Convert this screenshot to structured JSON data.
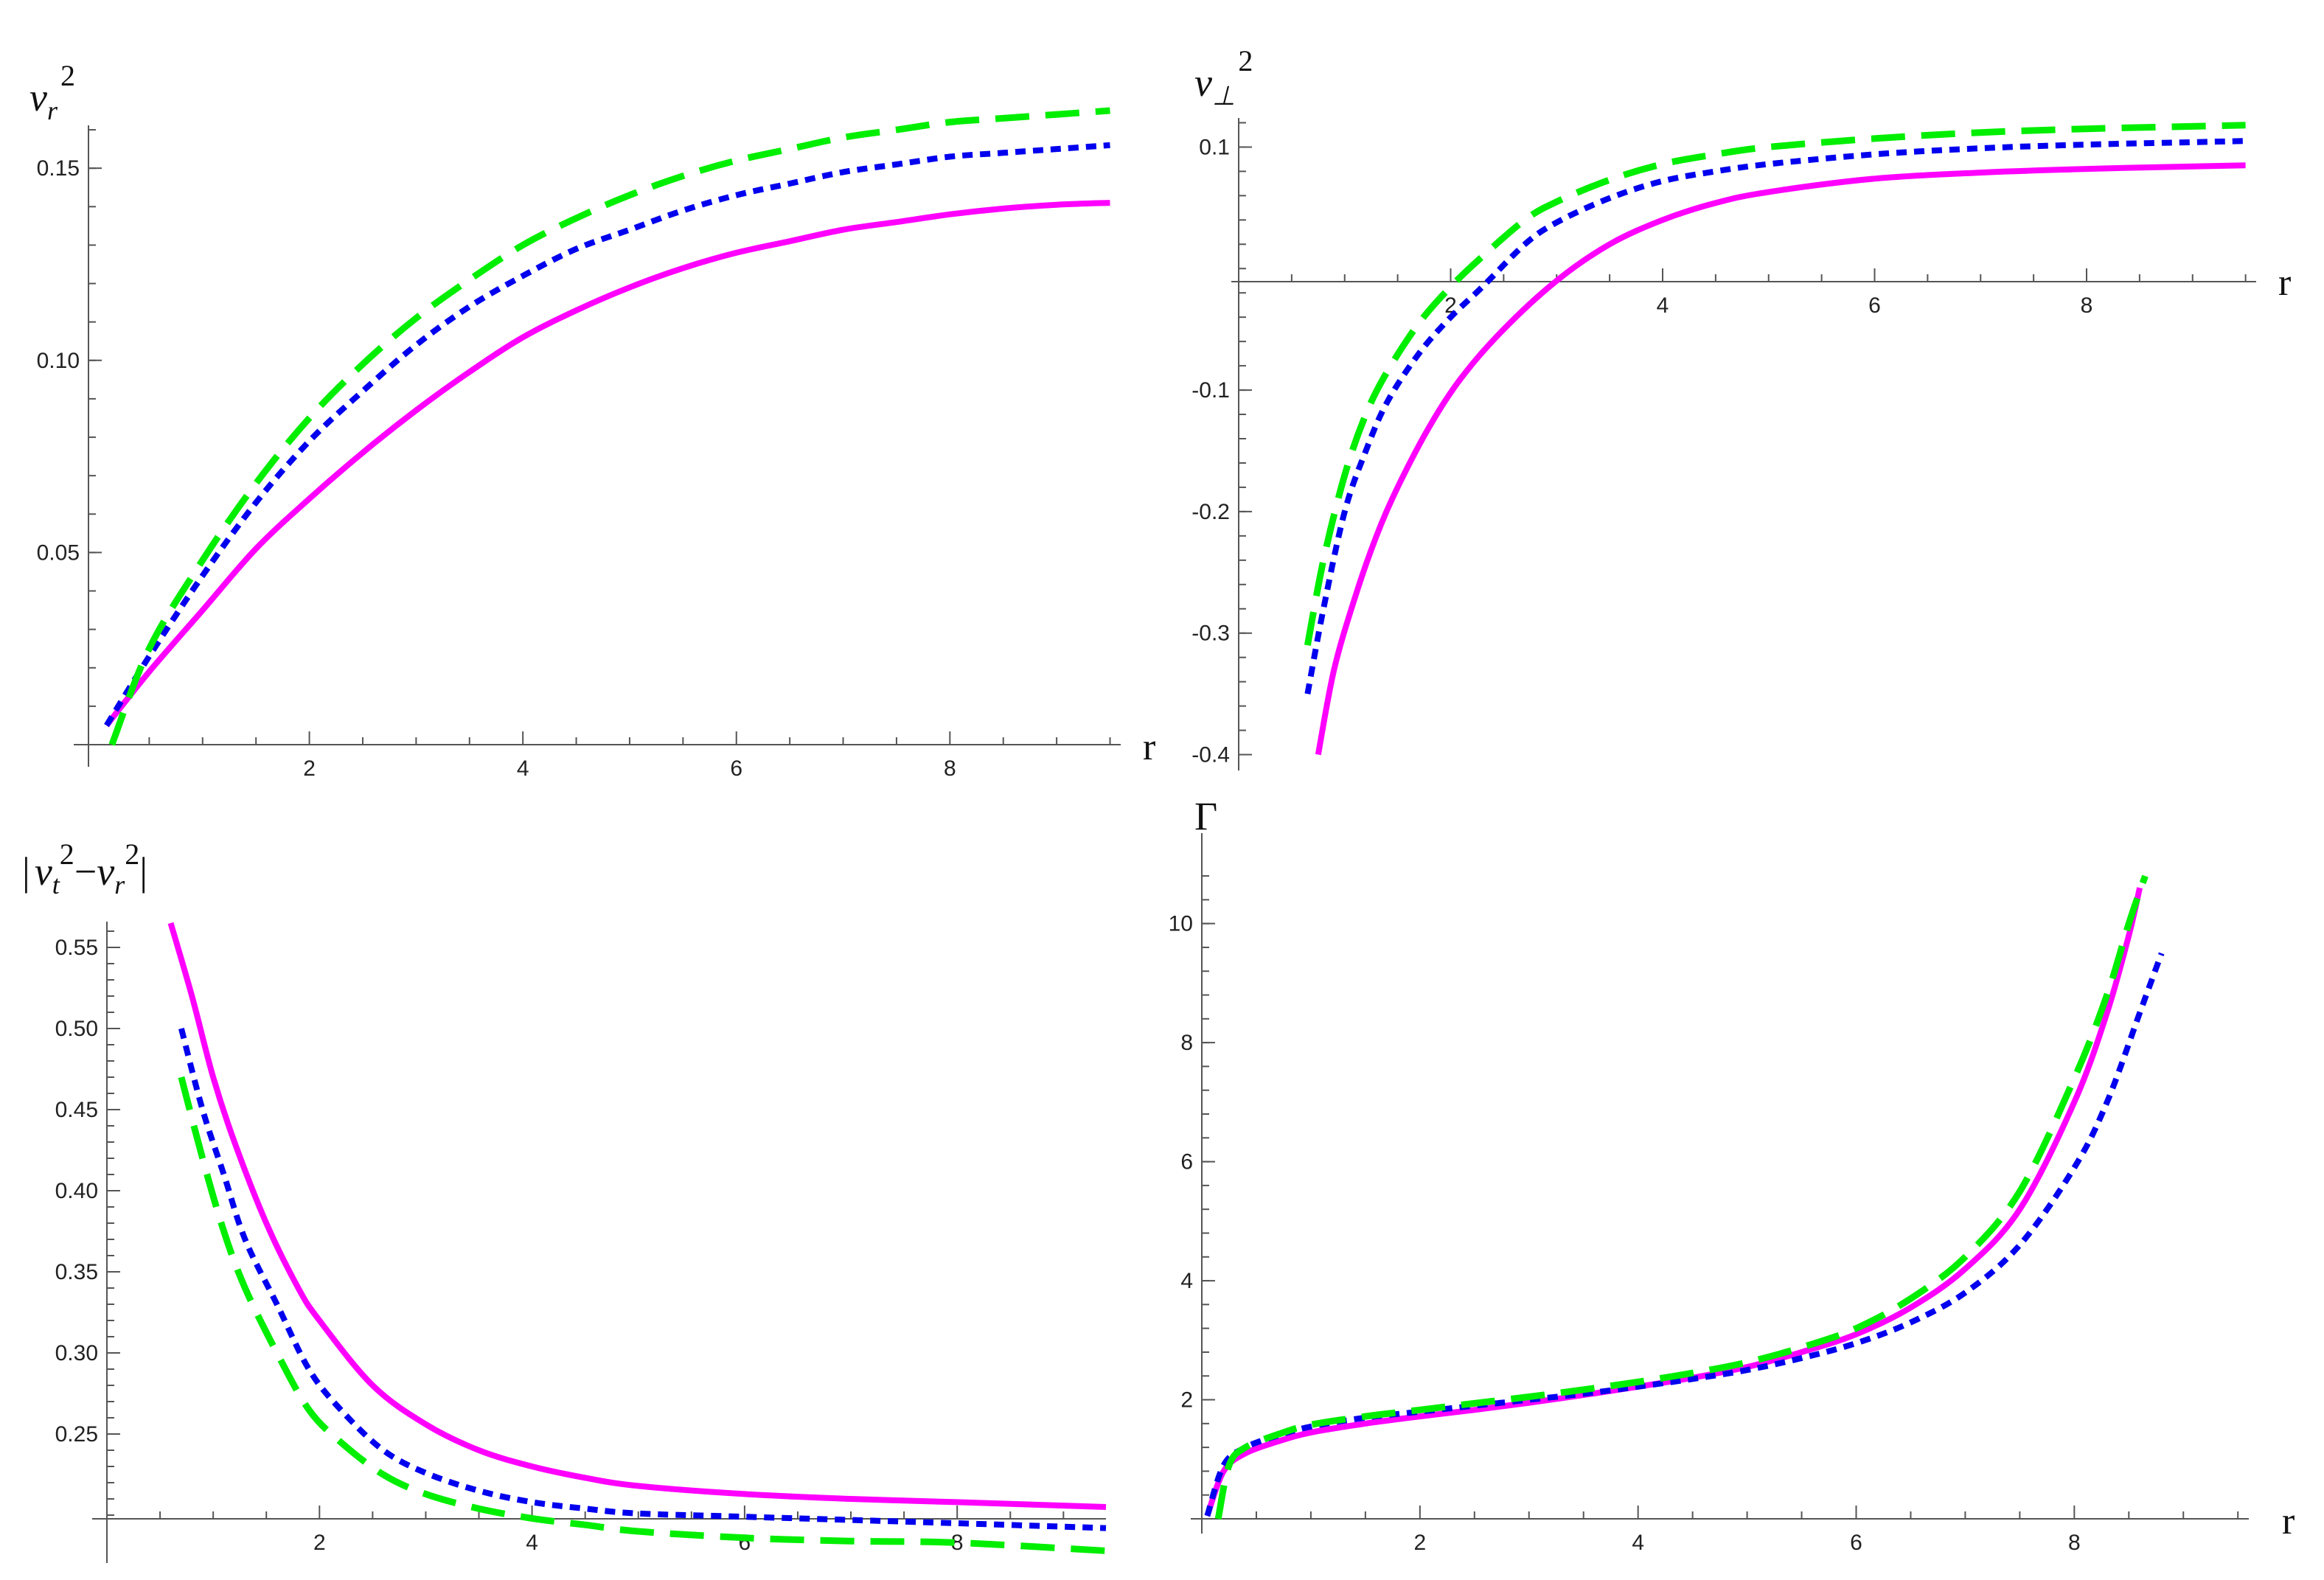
{
  "colors": {
    "magenta": "#ff00ff",
    "blue": "#0000ee",
    "green": "#00ee00",
    "axis": "#555555"
  },
  "chart_data": [
    {
      "id": "vr2",
      "type": "line",
      "ylabel": {
        "base": "v",
        "sub": "r",
        "sup": "2"
      },
      "xlabel": "r",
      "xlim": [
        0,
        9.6
      ],
      "ylim": [
        0,
        0.165
      ],
      "x_ticks": [
        "2",
        "4",
        "6",
        "8"
      ],
      "y_ticks": [
        "0.05",
        "0.10",
        "0.15"
      ],
      "series": [
        {
          "style": "solid",
          "color": "#ff00ff",
          "x": [
            0.1,
            0.5,
            1,
            1.5,
            2,
            2.5,
            3,
            3.5,
            4,
            4.5,
            5,
            5.5,
            6,
            6.5,
            7,
            7.5,
            8,
            8.5,
            9,
            9.5
          ],
          "y": [
            0.005,
            0.019,
            0.035,
            0.051,
            0.064,
            0.076,
            0.087,
            0.097,
            0.106,
            0.113,
            0.119,
            0.124,
            0.128,
            0.131,
            0.134,
            0.136,
            0.138,
            0.1395,
            0.1405,
            0.141
          ]
        },
        {
          "style": "dotted",
          "color": "#0000ee",
          "x": [
            0.1,
            0.5,
            1,
            1.5,
            2,
            2.5,
            3,
            3.5,
            4,
            4.5,
            5,
            5.5,
            6,
            6.5,
            7,
            7.5,
            8,
            8.5,
            9,
            9.5
          ],
          "y": [
            0.005,
            0.023,
            0.044,
            0.063,
            0.079,
            0.092,
            0.104,
            0.114,
            0.122,
            0.129,
            0.134,
            0.139,
            0.143,
            0.146,
            0.149,
            0.151,
            0.153,
            0.154,
            0.155,
            0.156
          ]
        },
        {
          "style": "dashed",
          "color": "#00ee00",
          "x": [
            0.15,
            0.5,
            1,
            1.5,
            2,
            2.5,
            3,
            3.5,
            4,
            4.5,
            5,
            5.5,
            6,
            6.5,
            7,
            7.5,
            8,
            8.5,
            9,
            9.5
          ],
          "y": [
            0.0,
            0.025,
            0.048,
            0.068,
            0.085,
            0.099,
            0.111,
            0.121,
            0.13,
            0.137,
            0.143,
            0.148,
            0.152,
            0.155,
            0.158,
            0.16,
            0.162,
            0.163,
            0.164,
            0.165
          ]
        }
      ]
    },
    {
      "id": "vperp2",
      "type": "line",
      "ylabel": {
        "base": "v",
        "sub": "⊥",
        "sup": "2"
      },
      "xlabel": "r",
      "xlim": [
        0,
        9.6
      ],
      "ylim": [
        -0.41,
        0.13
      ],
      "x_ticks": [
        "2",
        "4",
        "6",
        "8"
      ],
      "y_ticks": [
        "-0.4",
        "-0.3",
        "-0.2",
        "-0.1",
        "0.1"
      ],
      "series": [
        {
          "style": "solid",
          "color": "#ff00ff",
          "x": [
            0.75,
            0.9,
            1.1,
            1.3,
            1.5,
            1.8,
            2.1,
            2.5,
            3,
            3.5,
            4,
            4.5,
            5,
            6,
            7,
            8,
            9,
            9.5
          ],
          "y": [
            -0.4,
            -0.33,
            -0.27,
            -0.22,
            -0.18,
            -0.13,
            -0.09,
            -0.05,
            -0.01,
            0.02,
            0.04,
            0.054,
            0.063,
            0.074,
            0.079,
            0.082,
            0.084,
            0.085
          ]
        },
        {
          "style": "dotted",
          "color": "#0000ee",
          "x": [
            0.65,
            0.8,
            1,
            1.2,
            1.4,
            1.7,
            2,
            2.3,
            2.7,
            3,
            3.5,
            4,
            4.5,
            5,
            6,
            7,
            8,
            9,
            9.5
          ],
          "y": [
            -0.35,
            -0.28,
            -0.2,
            -0.15,
            -0.11,
            -0.07,
            -0.04,
            -0.015,
            0.02,
            0.038,
            0.058,
            0.072,
            0.08,
            0.086,
            0.094,
            0.099,
            0.102,
            0.104,
            0.105
          ]
        },
        {
          "style": "dashed",
          "color": "#00ee00",
          "x": [
            0.65,
            0.8,
            1,
            1.2,
            1.4,
            1.7,
            2,
            2.3,
            2.7,
            3,
            3.5,
            4,
            4.5,
            5,
            6,
            7,
            8,
            9,
            9.5
          ],
          "y": [
            -0.31,
            -0.24,
            -0.17,
            -0.12,
            -0.085,
            -0.045,
            -0.015,
            0.01,
            0.04,
            0.055,
            0.073,
            0.086,
            0.094,
            0.1,
            0.107,
            0.112,
            0.115,
            0.117,
            0.118
          ]
        }
      ]
    },
    {
      "id": "diff",
      "type": "line",
      "ylabel": {
        "text": "|v_t²−v_r²|"
      },
      "ylabel_parts": {
        "bar_left": "|",
        "v1": "v",
        "sub1": "t",
        "sup1": "2",
        "minus": "−",
        "v2": "v",
        "sub2": "r",
        "sup2": "2",
        "bar_right": "|"
      },
      "xlabel": "",
      "xlim": [
        0,
        9.4
      ],
      "ylim": [
        0.2,
        0.575
      ],
      "x_ticks": [
        "2",
        "4",
        "6",
        "8"
      ],
      "y_ticks": [
        "0.25",
        "0.30",
        "0.35",
        "0.40",
        "0.45",
        "0.50",
        "0.55"
      ],
      "series": [
        {
          "style": "solid",
          "color": "#ff00ff",
          "x": [
            0.6,
            0.8,
            1,
            1.2,
            1.5,
            1.8,
            2,
            2.5,
            3,
            3.5,
            4,
            4.5,
            5,
            6,
            7,
            8,
            9.4
          ],
          "y": [
            0.565,
            0.52,
            0.47,
            0.43,
            0.38,
            0.34,
            0.32,
            0.28,
            0.256,
            0.24,
            0.23,
            0.223,
            0.218,
            0.213,
            0.21,
            0.208,
            0.205
          ]
        },
        {
          "style": "dotted",
          "color": "#0000ee",
          "x": [
            0.7,
            0.9,
            1.1,
            1.3,
            1.6,
            1.9,
            2.2,
            2.6,
            3,
            3.5,
            4,
            4.5,
            5,
            6,
            7,
            8,
            9.4
          ],
          "y": [
            0.5,
            0.45,
            0.41,
            0.37,
            0.33,
            0.29,
            0.265,
            0.24,
            0.226,
            0.215,
            0.208,
            0.204,
            0.201,
            0.199,
            0.197,
            0.195,
            0.192
          ]
        },
        {
          "style": "dashed",
          "color": "#00ee00",
          "x": [
            0.7,
            0.9,
            1.1,
            1.3,
            1.6,
            1.9,
            2.2,
            2.6,
            3,
            3.5,
            4,
            4.5,
            5,
            6,
            7,
            8,
            9.4
          ],
          "y": [
            0.47,
            0.42,
            0.375,
            0.34,
            0.3,
            0.265,
            0.245,
            0.225,
            0.213,
            0.204,
            0.198,
            0.194,
            0.19,
            0.186,
            0.184,
            0.183,
            0.178
          ]
        }
      ]
    },
    {
      "id": "gamma",
      "type": "line",
      "ylabel": {
        "text": "Γ"
      },
      "xlabel": "r",
      "xlim": [
        0,
        9.6
      ],
      "ylim": [
        0,
        10.9
      ],
      "x_ticks": [
        "2",
        "4",
        "6",
        "8"
      ],
      "y_ticks": [
        "2",
        "4",
        "6",
        "8",
        "10"
      ],
      "series": [
        {
          "style": "solid",
          "color": "#ff00ff",
          "x": [
            0.05,
            0.2,
            0.4,
            0.7,
            1,
            1.5,
            2,
            2.5,
            3,
            3.5,
            4,
            4.5,
            5,
            5.5,
            6,
            6.5,
            7,
            7.5,
            8,
            8.3,
            8.5,
            8.6
          ],
          "y": [
            0.05,
            0.8,
            1.1,
            1.3,
            1.45,
            1.6,
            1.72,
            1.83,
            1.95,
            2.08,
            2.22,
            2.37,
            2.55,
            2.8,
            3.1,
            3.55,
            4.2,
            5.2,
            7.0,
            8.5,
            9.8,
            10.6
          ]
        },
        {
          "style": "dotted",
          "color": "#0000ee",
          "x": [
            0.05,
            0.2,
            0.4,
            0.7,
            1,
            1.5,
            2,
            2.5,
            3,
            3.5,
            4,
            4.5,
            5,
            5.5,
            6,
            6.5,
            7,
            7.5,
            8,
            8.3,
            8.6,
            8.8
          ],
          "y": [
            0.05,
            0.9,
            1.2,
            1.4,
            1.55,
            1.7,
            1.8,
            1.9,
            2.0,
            2.1,
            2.22,
            2.35,
            2.5,
            2.7,
            2.95,
            3.3,
            3.8,
            4.6,
            5.9,
            7.0,
            8.5,
            9.5
          ]
        },
        {
          "style": "dashed",
          "color": "#00ee00",
          "x": [
            0.15,
            0.25,
            0.4,
            0.7,
            1,
            1.5,
            2,
            2.5,
            3,
            3.5,
            4,
            4.5,
            5,
            5.5,
            6,
            6.5,
            7,
            7.5,
            8,
            8.3,
            8.5,
            8.65
          ],
          "y": [
            0.0,
            0.9,
            1.2,
            1.42,
            1.58,
            1.72,
            1.83,
            1.94,
            2.05,
            2.17,
            2.3,
            2.45,
            2.63,
            2.88,
            3.2,
            3.7,
            4.4,
            5.5,
            7.4,
            8.8,
            10.0,
            10.8
          ]
        }
      ]
    }
  ]
}
